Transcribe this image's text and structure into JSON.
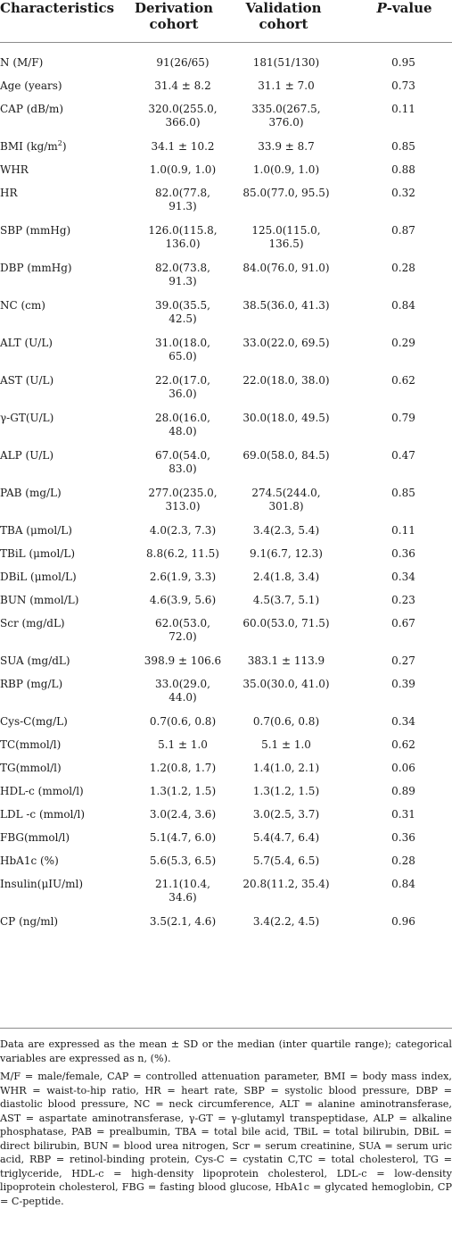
{
  "header": {
    "col1": "Characteristics",
    "col2": "Derivation cohort",
    "col3": "Validation cohort",
    "col4_italic": "P",
    "col4_rest": "-value"
  },
  "rows": [
    {
      "label": "N (M/F)",
      "deriv": [
        "91(26/65)"
      ],
      "valid": [
        "181(51/130)"
      ],
      "p": "0.95"
    },
    {
      "label": "Age (years)",
      "deriv": [
        "31.4 ± 8.2"
      ],
      "valid": [
        "31.1 ± 7.0"
      ],
      "p": "0.73"
    },
    {
      "label": "CAP (dB/m)",
      "deriv": [
        "320.0(255.0,",
        "366.0)"
      ],
      "valid": [
        "335.0(267.5,",
        "376.0)"
      ],
      "p": "0.11"
    },
    {
      "label": "BMI (kg/m",
      "label_sup": "2",
      "label_after": ")",
      "deriv": [
        "34.1 ± 10.2"
      ],
      "valid": [
        "33.9 ± 8.7"
      ],
      "p": "0.85"
    },
    {
      "label": "WHR",
      "deriv": [
        "1.0(0.9, 1.0)"
      ],
      "valid": [
        "1.0(0.9, 1.0)"
      ],
      "p": "0.88"
    },
    {
      "label": "HR",
      "deriv": [
        "82.0(77.8,",
        "91.3)"
      ],
      "valid": [
        "85.0(77.0, 95.5)"
      ],
      "p": "0.32"
    },
    {
      "label": "SBP (mmHg)",
      "deriv": [
        "126.0(115.8,",
        "136.0)"
      ],
      "valid": [
        "125.0(115.0,",
        "136.5)"
      ],
      "p": "0.87"
    },
    {
      "label": "DBP (mmHg)",
      "deriv": [
        "82.0(73.8,",
        "91.3)"
      ],
      "valid": [
        "84.0(76.0, 91.0)"
      ],
      "p": "0.28"
    },
    {
      "label": "NC (cm)",
      "deriv": [
        "39.0(35.5,",
        "42.5)"
      ],
      "valid": [
        "38.5(36.0, 41.3)"
      ],
      "p": "0.84"
    },
    {
      "label": "ALT (U/L)",
      "deriv": [
        "31.0(18.0,",
        "65.0)"
      ],
      "valid": [
        "33.0(22.0, 69.5)"
      ],
      "p": "0.29"
    },
    {
      "label": "AST (U/L)",
      "deriv": [
        "22.0(17.0,",
        "36.0)"
      ],
      "valid": [
        "22.0(18.0, 38.0)"
      ],
      "p": "0.62"
    },
    {
      "label": "γ-GT(U/L)",
      "deriv": [
        "28.0(16.0,",
        "48.0)"
      ],
      "valid": [
        "30.0(18.0, 49.5)"
      ],
      "p": "0.79"
    },
    {
      "label": "ALP (U/L)",
      "deriv": [
        "67.0(54.0,",
        "83.0)"
      ],
      "valid": [
        "69.0(58.0, 84.5)"
      ],
      "p": "0.47"
    },
    {
      "label": "PAB (mg/L)",
      "deriv": [
        "277.0(235.0,",
        "313.0)"
      ],
      "valid": [
        "274.5(244.0,",
        "301.8)"
      ],
      "p": "0.85"
    },
    {
      "label": "TBA (μmol/L)",
      "deriv": [
        "4.0(2.3, 7.3)"
      ],
      "valid": [
        "3.4(2.3, 5.4)"
      ],
      "p": "0.11"
    },
    {
      "label": "TBiL (μmol/L)",
      "deriv": [
        "8.8(6.2, 11.5)"
      ],
      "valid": [
        "9.1(6.7, 12.3)"
      ],
      "p": "0.36"
    },
    {
      "label": "DBiL (μmol/L)",
      "deriv": [
        "2.6(1.9, 3.3)"
      ],
      "valid": [
        "2.4(1.8, 3.4)"
      ],
      "p": "0.34"
    },
    {
      "label": "BUN (mmol/L)",
      "deriv": [
        "4.6(3.9, 5.6)"
      ],
      "valid": [
        "4.5(3.7, 5.1)"
      ],
      "p": "0.23"
    },
    {
      "label": "Scr (mg/dL)",
      "deriv": [
        "62.0(53.0,",
        "72.0)"
      ],
      "valid": [
        "60.0(53.0, 71.5)"
      ],
      "p": "0.67"
    },
    {
      "label": "SUA (mg/dL)",
      "deriv": [
        "398.9 ± 106.6"
      ],
      "valid": [
        "383.1 ± 113.9"
      ],
      "p": "0.27"
    },
    {
      "label": "RBP (mg/L)",
      "deriv": [
        "33.0(29.0,",
        "44.0)"
      ],
      "valid": [
        "35.0(30.0, 41.0)"
      ],
      "p": "0.39"
    },
    {
      "label": "Cys-C(mg/L)",
      "deriv": [
        "0.7(0.6, 0.8)"
      ],
      "valid": [
        "0.7(0.6, 0.8)"
      ],
      "p": "0.34"
    },
    {
      "label": "TC(mmol/l)",
      "deriv": [
        "5.1 ± 1.0"
      ],
      "valid": [
        "5.1 ± 1.0"
      ],
      "p": "0.62"
    },
    {
      "label": "TG(mmol/l)",
      "deriv": [
        "1.2(0.8, 1.7)"
      ],
      "valid": [
        "1.4(1.0, 2.1)"
      ],
      "p": "0.06"
    },
    {
      "label": "HDL-c (mmol/l)",
      "deriv": [
        "1.3(1.2, 1.5)"
      ],
      "valid": [
        "1.3(1.2, 1.5)"
      ],
      "p": "0.89"
    },
    {
      "label": "LDL -c (mmol/l)",
      "deriv": [
        "3.0(2.4, 3.6)"
      ],
      "valid": [
        "3.0(2.5, 3.7)"
      ],
      "p": "0.31"
    },
    {
      "label": "FBG(mmol/l)",
      "deriv": [
        "5.1(4.7, 6.0)"
      ],
      "valid": [
        "5.4(4.7, 6.4)"
      ],
      "p": "0.36"
    },
    {
      "label": "HbA1c (%)",
      "deriv": [
        "5.6(5.3, 6.5)"
      ],
      "valid": [
        "5.7(5.4, 6.5)"
      ],
      "p": "0.28"
    },
    {
      "label": "Insulin(μIU/ml)",
      "deriv": [
        "21.1(10.4,",
        "34.6)"
      ],
      "valid": [
        "20.8(11.2, 35.4)"
      ],
      "p": "0.84"
    },
    {
      "label": "CP (ng/ml)",
      "deriv": [
        "3.5(2.1, 4.6)"
      ],
      "valid": [
        "3.4(2.2, 4.5)"
      ],
      "p": "0.96"
    }
  ],
  "notes": {
    "note1": "Data are expressed as the mean ± SD or the median (inter quartile range); categorical variables are expressed as n, (%).",
    "note2": "M/F = male/female, CAP = controlled attenuation parameter, BMI = body mass index, WHR = waist-to-hip ratio, HR = heart rate, SBP = systolic blood pressure, DBP = diastolic blood pressure, NC = neck circumference, ALT = alanine aminotransferase, AST = aspartate aminotransferase, γ-GT = γ-glutamyl transpeptidase, ALP = alkaline phosphatase, PAB = prealbumin, TBA = total bile acid, TBiL = total bilirubin, DBiL = direct bilirubin, BUN = blood urea nitrogen, Scr = serum creatinine, SUA = serum uric acid, RBP = retinol-binding protein, Cys-C = cystatin C,TC = total cholesterol, TG = triglyceride, HDL-c = high-density lipoprotein cholesterol, LDL-c = low-density lipoprotein cholesterol, FBG = fasting blood glucose, HbA1c = glycated hemoglobin, CP = C-peptide."
  }
}
